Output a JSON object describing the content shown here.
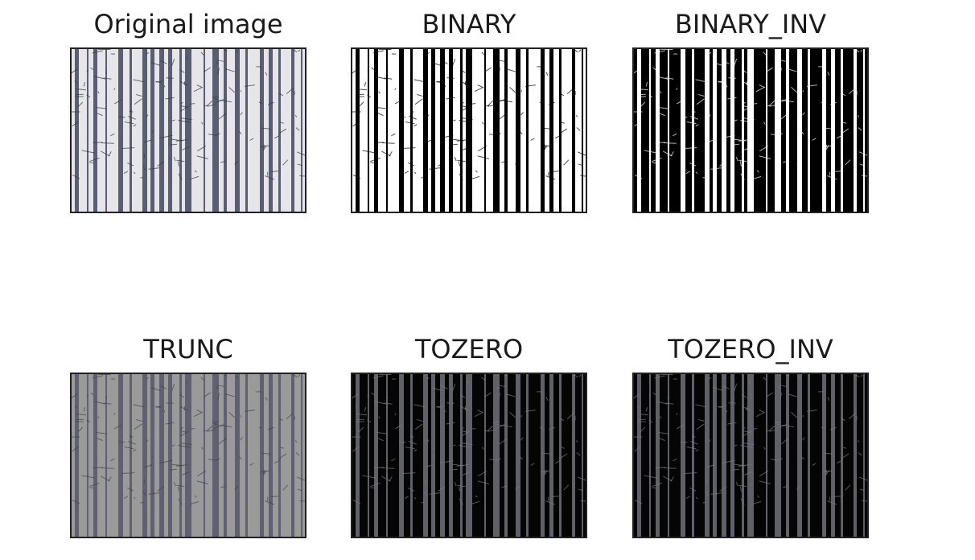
{
  "panels": [
    {
      "id": "original",
      "title": "Original image",
      "variant": "original"
    },
    {
      "id": "binary",
      "title": "BINARY",
      "variant": "binary"
    },
    {
      "id": "binary_inv",
      "title": "BINARY_INV",
      "variant": "binary_inv"
    },
    {
      "id": "trunc",
      "title": "TRUNC",
      "variant": "trunc"
    },
    {
      "id": "tozero",
      "title": "TOZERO",
      "variant": "tozero"
    },
    {
      "id": "tozero_inv",
      "title": "TOZERO_INV",
      "variant": "tozero_inv"
    }
  ],
  "colors": {
    "original_bg": "#e6e6ea",
    "original_trunk": "#4a4f66",
    "binary_bg": "#ffffff",
    "binary_trunk": "#000000",
    "binary_inv_bg": "#000000",
    "binary_inv_trunk": "#ffffff",
    "trunc_bg": "#9a9a9a",
    "trunc_trunk": "#55566a",
    "tozero_bg": "#050505",
    "tozero_trunk": "#6a6a74"
  }
}
